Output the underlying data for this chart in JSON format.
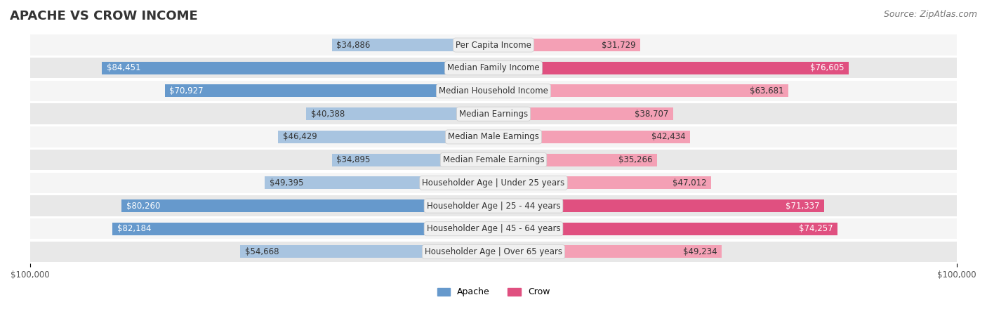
{
  "title": "APACHE VS CROW INCOME",
  "source": "Source: ZipAtlas.com",
  "categories": [
    "Per Capita Income",
    "Median Family Income",
    "Median Household Income",
    "Median Earnings",
    "Median Male Earnings",
    "Median Female Earnings",
    "Householder Age | Under 25 years",
    "Householder Age | 25 - 44 years",
    "Householder Age | 45 - 64 years",
    "Householder Age | Over 65 years"
  ],
  "apache_values": [
    34886,
    84451,
    70927,
    40388,
    46429,
    34895,
    49395,
    80260,
    82184,
    54668
  ],
  "crow_values": [
    31729,
    76605,
    63681,
    38707,
    42434,
    35266,
    47012,
    71337,
    74257,
    49234
  ],
  "max_value": 100000,
  "apache_color_light": "#a8c4e0",
  "apache_color_dark": "#6699cc",
  "crow_color_light": "#f4a0b5",
  "crow_color_dark": "#e05080",
  "label_box_color": "#f0f0f0",
  "label_box_edge": "#cccccc",
  "row_bg_light": "#f5f5f5",
  "row_bg_dark": "#e8e8e8",
  "title_fontsize": 13,
  "source_fontsize": 9,
  "bar_label_fontsize": 8.5,
  "cat_label_fontsize": 8.5,
  "axis_label_fontsize": 8.5,
  "legend_fontsize": 9
}
